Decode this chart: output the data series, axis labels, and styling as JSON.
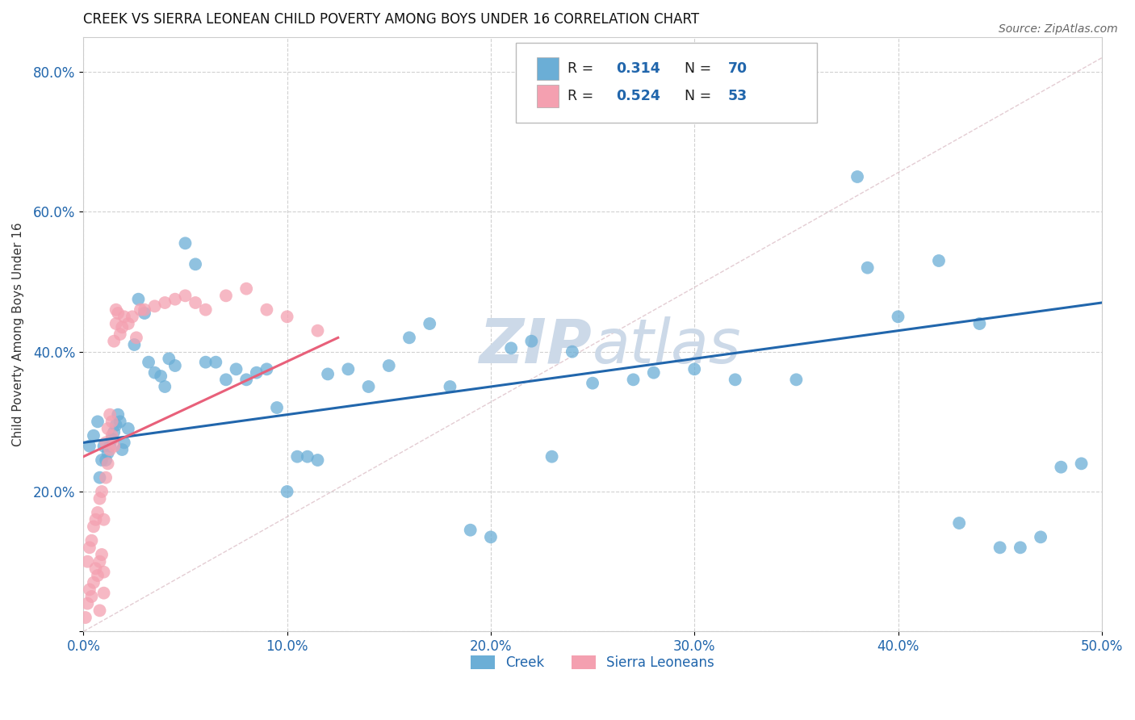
{
  "title": "CREEK VS SIERRA LEONEAN CHILD POVERTY AMONG BOYS UNDER 16 CORRELATION CHART",
  "source": "Source: ZipAtlas.com",
  "ylabel": "Child Poverty Among Boys Under 16",
  "xlim": [
    0.0,
    0.5
  ],
  "ylim": [
    0.0,
    0.85
  ],
  "xticklabels": [
    "0.0%",
    "10.0%",
    "20.0%",
    "30.0%",
    "40.0%",
    "50.0%"
  ],
  "yticklabels": [
    "",
    "20.0%",
    "40.0%",
    "60.0%",
    "80.0%"
  ],
  "creek_R": "0.314",
  "creek_N": "70",
  "sl_R": "0.524",
  "sl_N": "53",
  "creek_color": "#6baed6",
  "sl_color": "#f4a0b0",
  "creek_line_color": "#2166ac",
  "sl_line_color": "#e8607a",
  "watermark_color": "#ccd9e8",
  "background_color": "#ffffff",
  "grid_color": "#cccccc",
  "creek_x": [
    0.003,
    0.005,
    0.007,
    0.008,
    0.009,
    0.01,
    0.011,
    0.012,
    0.013,
    0.014,
    0.015,
    0.016,
    0.017,
    0.018,
    0.019,
    0.02,
    0.022,
    0.025,
    0.027,
    0.03,
    0.032,
    0.035,
    0.038,
    0.04,
    0.042,
    0.045,
    0.05,
    0.055,
    0.06,
    0.065,
    0.07,
    0.075,
    0.08,
    0.085,
    0.09,
    0.095,
    0.1,
    0.105,
    0.11,
    0.115,
    0.12,
    0.13,
    0.14,
    0.15,
    0.16,
    0.17,
    0.18,
    0.19,
    0.2,
    0.21,
    0.22,
    0.23,
    0.24,
    0.25,
    0.27,
    0.28,
    0.3,
    0.32,
    0.35,
    0.38,
    0.4,
    0.42,
    0.44,
    0.45,
    0.46,
    0.48,
    0.385,
    0.43,
    0.47,
    0.49
  ],
  "creek_y": [
    0.265,
    0.28,
    0.3,
    0.22,
    0.245,
    0.265,
    0.245,
    0.255,
    0.265,
    0.275,
    0.285,
    0.295,
    0.31,
    0.3,
    0.26,
    0.27,
    0.29,
    0.41,
    0.475,
    0.455,
    0.385,
    0.37,
    0.365,
    0.35,
    0.39,
    0.38,
    0.555,
    0.525,
    0.385,
    0.385,
    0.36,
    0.375,
    0.36,
    0.37,
    0.375,
    0.32,
    0.2,
    0.25,
    0.25,
    0.245,
    0.368,
    0.375,
    0.35,
    0.38,
    0.42,
    0.44,
    0.35,
    0.145,
    0.135,
    0.405,
    0.415,
    0.25,
    0.4,
    0.355,
    0.36,
    0.37,
    0.375,
    0.36,
    0.36,
    0.65,
    0.45,
    0.53,
    0.44,
    0.12,
    0.12,
    0.235,
    0.52,
    0.155,
    0.135,
    0.24
  ],
  "sl_x": [
    0.001,
    0.002,
    0.002,
    0.003,
    0.003,
    0.004,
    0.004,
    0.005,
    0.005,
    0.006,
    0.006,
    0.007,
    0.007,
    0.008,
    0.008,
    0.008,
    0.009,
    0.009,
    0.01,
    0.01,
    0.01,
    0.011,
    0.011,
    0.012,
    0.012,
    0.013,
    0.013,
    0.014,
    0.014,
    0.015,
    0.015,
    0.016,
    0.016,
    0.017,
    0.018,
    0.019,
    0.02,
    0.022,
    0.024,
    0.026,
    0.028,
    0.03,
    0.035,
    0.04,
    0.045,
    0.05,
    0.055,
    0.06,
    0.07,
    0.08,
    0.09,
    0.1,
    0.115
  ],
  "sl_y": [
    0.02,
    0.04,
    0.1,
    0.06,
    0.12,
    0.05,
    0.13,
    0.07,
    0.15,
    0.09,
    0.16,
    0.08,
    0.17,
    0.1,
    0.19,
    0.03,
    0.11,
    0.2,
    0.085,
    0.16,
    0.055,
    0.22,
    0.27,
    0.24,
    0.29,
    0.26,
    0.31,
    0.28,
    0.3,
    0.265,
    0.415,
    0.44,
    0.46,
    0.455,
    0.425,
    0.435,
    0.45,
    0.44,
    0.45,
    0.42,
    0.46,
    0.46,
    0.465,
    0.47,
    0.475,
    0.48,
    0.47,
    0.46,
    0.48,
    0.49,
    0.46,
    0.45,
    0.43
  ]
}
